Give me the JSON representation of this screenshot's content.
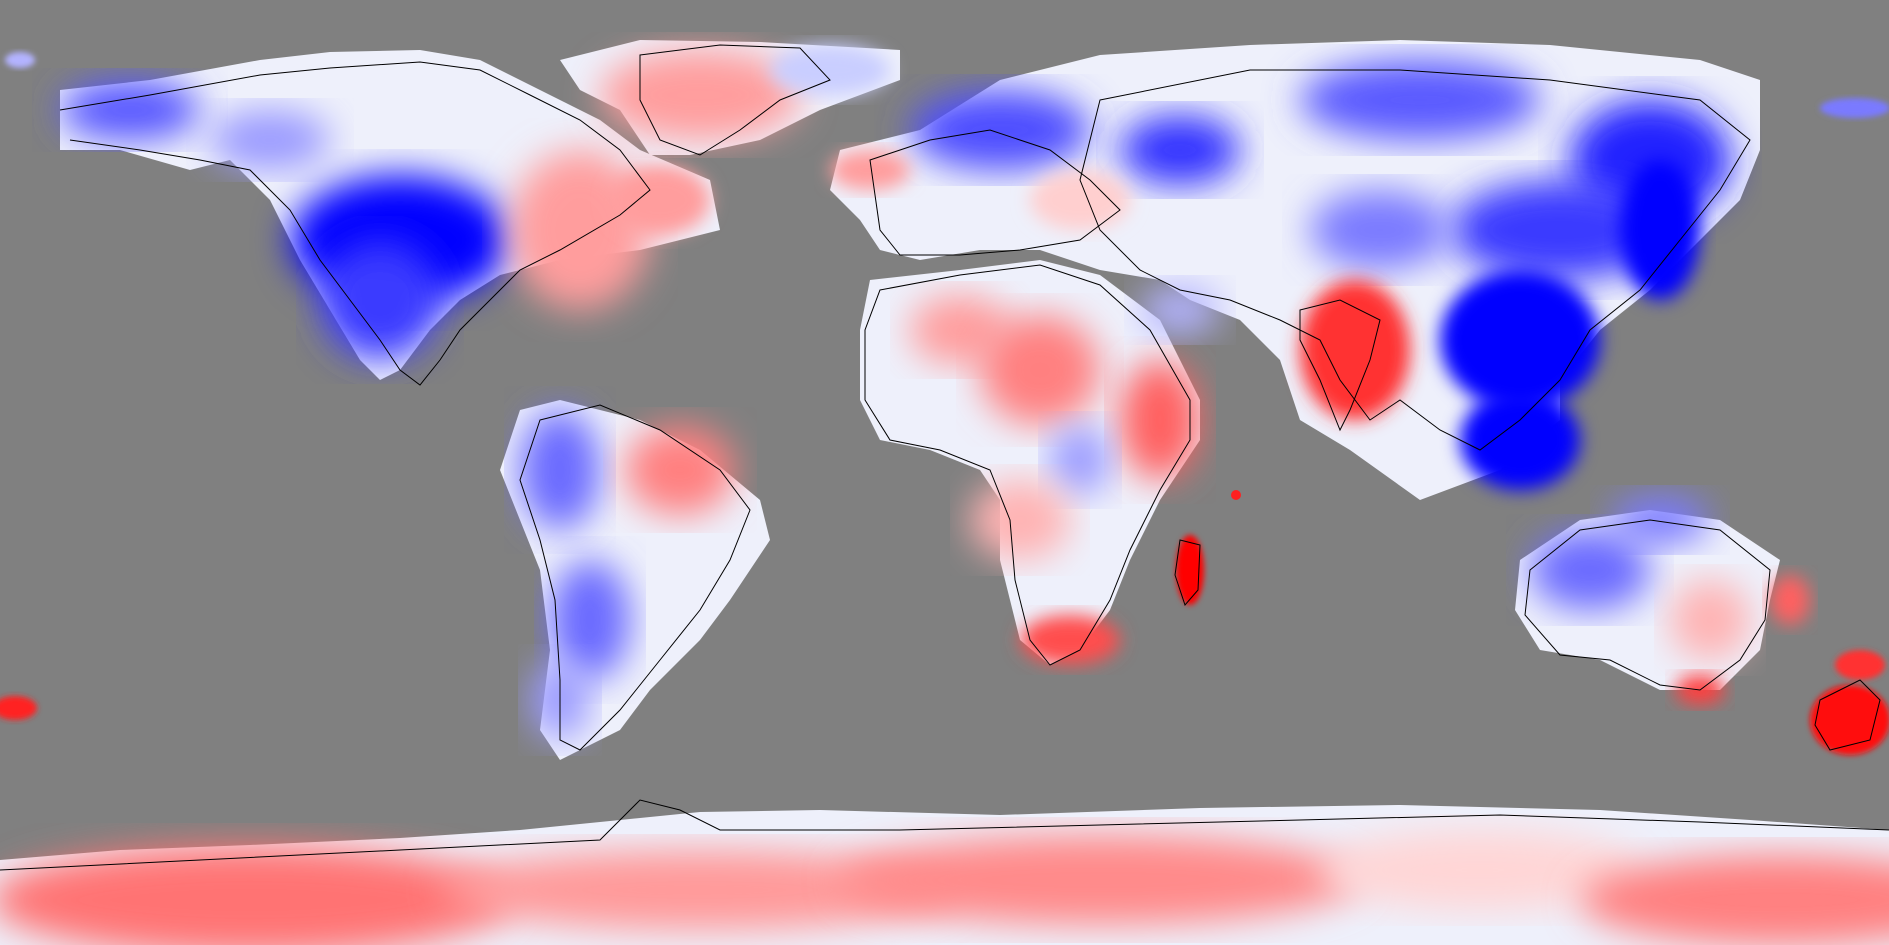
{
  "map": {
    "projection": "equirectangular",
    "ocean_color": "#808080",
    "coastline_color": "#000000",
    "diverging_scale": {
      "negative_color": "#0000ff",
      "neutral_color": "#ffffff",
      "positive_color": "#ff0000",
      "levels": 11
    },
    "regions": [
      {
        "name": "antarctica",
        "sign": "positive"
      },
      {
        "name": "greenland",
        "sign": "positive"
      },
      {
        "name": "north-america-west",
        "sign": "negative"
      },
      {
        "name": "north-america-east",
        "sign": "positive"
      },
      {
        "name": "south-america",
        "sign": "mixed"
      },
      {
        "name": "europe",
        "sign": "negative"
      },
      {
        "name": "africa",
        "sign": "positive"
      },
      {
        "name": "india",
        "sign": "positive"
      },
      {
        "name": "east-asia",
        "sign": "negative"
      },
      {
        "name": "southeast-asia",
        "sign": "negative"
      },
      {
        "name": "australia",
        "sign": "mixed"
      },
      {
        "name": "new-zealand",
        "sign": "positive"
      },
      {
        "name": "madagascar",
        "sign": "positive"
      }
    ]
  }
}
